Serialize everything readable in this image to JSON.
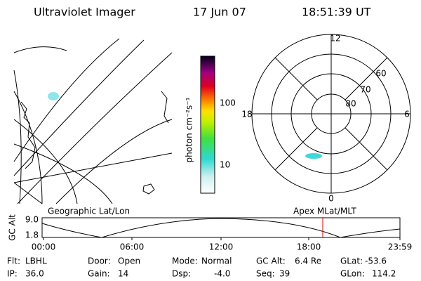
{
  "header": {
    "title": "Ultraviolet Imager",
    "date": "17 Jun 07",
    "time": "18:51:39 UT"
  },
  "colorbar": {
    "label": "photon cm⁻²s⁻¹",
    "ticks": [
      "100",
      "10"
    ]
  },
  "polar": {
    "mlt_labels": [
      "12",
      "18",
      "6",
      "0"
    ],
    "lat_labels": [
      "60",
      "70",
      "80"
    ]
  },
  "timeline": {
    "left_title": "Geographic Lat/Lon",
    "right_title": "Apex MLat/MLT",
    "axis_label": "GC Alt",
    "y_labels": [
      "9.0",
      "1.8"
    ],
    "x_labels": [
      "00:00",
      "06:00",
      "12:00",
      "18:00",
      "23:59"
    ]
  },
  "footer": [
    [
      {
        "label": "Flt:",
        "value": "LBHL"
      },
      {
        "label": "Door:",
        "value": "Open"
      },
      {
        "label": "Mode:",
        "value": "Normal"
      },
      {
        "label": "GC Alt:",
        "value": "6.4 Re"
      },
      {
        "label": "GLat:",
        "value": "-53.6"
      }
    ],
    [
      {
        "label": "IP:",
        "value": "36.0"
      },
      {
        "label": "Gain:",
        "value": "14"
      },
      {
        "label": "Dsp:",
        "value": "-4.0"
      },
      {
        "label": "Seq:",
        "value": "39"
      },
      {
        "label": "GLon:",
        "value": "114.2"
      }
    ]
  ]
}
